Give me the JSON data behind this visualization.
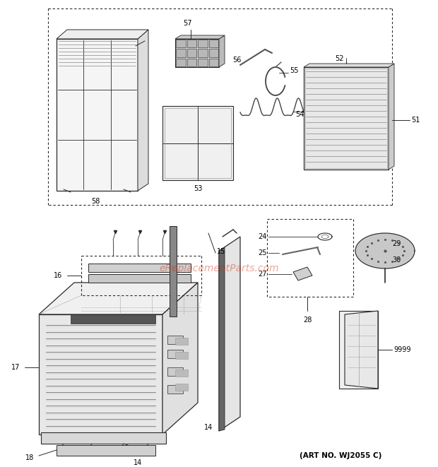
{
  "background_color": "#ffffff",
  "line_color": "#2a2a2a",
  "text_color": "#000000",
  "watermark_text": "eReplacementParts.com",
  "watermark_color": "#cc2200",
  "art_no_text": "(ART NO. WJ2055 C)",
  "fig_width": 6.2,
  "fig_height": 6.61,
  "dpi": 100
}
